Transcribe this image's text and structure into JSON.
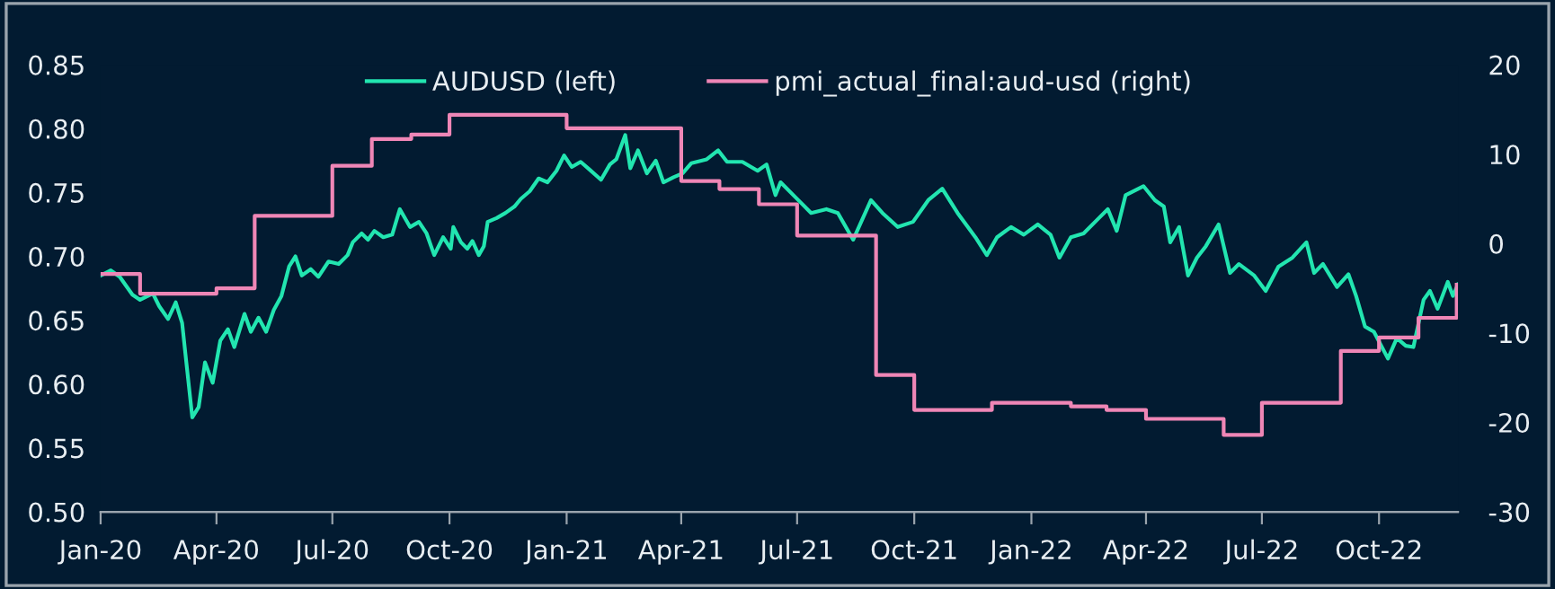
{
  "chart_data": {
    "type": "line",
    "legend": "top",
    "grid": false,
    "marker": "none",
    "line_style": "solid",
    "xlim": [
      "2020-01-01",
      "2022-12-02"
    ],
    "xticks": [
      {
        "value": "2020-01-01",
        "label": "Jan-20"
      },
      {
        "value": "2020-04-01",
        "label": "Apr-20"
      },
      {
        "value": "2020-07-01",
        "label": "Jul-20"
      },
      {
        "value": "2020-10-01",
        "label": "Oct-20"
      },
      {
        "value": "2021-01-01",
        "label": "Jan-21"
      },
      {
        "value": "2021-04-01",
        "label": "Apr-21"
      },
      {
        "value": "2021-07-01",
        "label": "Jul-21"
      },
      {
        "value": "2021-10-01",
        "label": "Oct-21"
      },
      {
        "value": "2022-01-01",
        "label": "Jan-22"
      },
      {
        "value": "2022-04-01",
        "label": "Apr-22"
      },
      {
        "value": "2022-07-01",
        "label": "Jul-22"
      },
      {
        "value": "2022-10-01",
        "label": "Oct-22"
      }
    ],
    "ylim": [
      0.5,
      0.85
    ],
    "yticks": [
      {
        "value": 0.5,
        "label": "0.50"
      },
      {
        "value": 0.55,
        "label": "0.55"
      },
      {
        "value": 0.6,
        "label": "0.60"
      },
      {
        "value": 0.65,
        "label": "0.65"
      },
      {
        "value": 0.7,
        "label": "0.70"
      },
      {
        "value": 0.75,
        "label": "0.75"
      },
      {
        "value": 0.8,
        "label": "0.80"
      },
      {
        "value": 0.85,
        "label": "0.85"
      }
    ],
    "y2lim": [
      -30,
      20
    ],
    "y2ticks": [
      -30,
      -20,
      -10,
      0,
      10,
      20
    ],
    "series": [
      {
        "name": "AUDUSD (left)",
        "color": "#22e5b0",
        "x": [
          "2020-01-01",
          "2020-01-09",
          "2020-01-16",
          "2020-01-26",
          "2020-02-01",
          "2020-02-11",
          "2020-02-16",
          "2020-02-23",
          "2020-02-29",
          "2020-03-05",
          "2020-03-08",
          "2020-03-13",
          "2020-03-18",
          "2020-03-23",
          "2020-03-29",
          "2020-04-04",
          "2020-04-10",
          "2020-04-15",
          "2020-04-23",
          "2020-04-28",
          "2020-05-04",
          "2020-05-10",
          "2020-05-16",
          "2020-05-22",
          "2020-05-28",
          "2020-06-02",
          "2020-06-07",
          "2020-06-14",
          "2020-06-20",
          "2020-06-28",
          "2020-07-06",
          "2020-07-13",
          "2020-07-17",
          "2020-07-24",
          "2020-07-29",
          "2020-08-03",
          "2020-08-10",
          "2020-08-17",
          "2020-08-23",
          "2020-08-31",
          "2020-09-07",
          "2020-09-13",
          "2020-09-19",
          "2020-09-26",
          "2020-10-02",
          "2020-10-04",
          "2020-10-10",
          "2020-10-15",
          "2020-10-19",
          "2020-10-24",
          "2020-10-28",
          "2020-10-31",
          "2020-11-07",
          "2020-11-14",
          "2020-11-21",
          "2020-11-26",
          "2020-12-03",
          "2020-12-10",
          "2020-12-17",
          "2020-12-24",
          "2020-12-30",
          "2021-01-05",
          "2021-01-12",
          "2021-01-19",
          "2021-01-28",
          "2021-02-04",
          "2021-02-09",
          "2021-02-16",
          "2021-02-20",
          "2021-02-26",
          "2021-03-05",
          "2021-03-12",
          "2021-03-18",
          "2021-03-26",
          "2021-04-02",
          "2021-04-09",
          "2021-04-21",
          "2021-04-30",
          "2021-05-07",
          "2021-05-19",
          "2021-05-31",
          "2021-06-07",
          "2021-06-14",
          "2021-06-18",
          "2021-06-30",
          "2021-07-12",
          "2021-07-24",
          "2021-08-02",
          "2021-08-14",
          "2021-08-28",
          "2021-09-06",
          "2021-09-18",
          "2021-09-30",
          "2021-10-12",
          "2021-10-23",
          "2021-11-04",
          "2021-11-18",
          "2021-11-27",
          "2021-12-05",
          "2021-12-16",
          "2021-12-26",
          "2022-01-06",
          "2022-01-16",
          "2022-01-23",
          "2022-02-01",
          "2022-02-11",
          "2022-02-23",
          "2022-03-02",
          "2022-03-09",
          "2022-03-16",
          "2022-03-30",
          "2022-04-08",
          "2022-04-15",
          "2022-04-20",
          "2022-04-27",
          "2022-05-04",
          "2022-05-11",
          "2022-05-18",
          "2022-05-28",
          "2022-06-06",
          "2022-06-13",
          "2022-06-25",
          "2022-07-04",
          "2022-07-14",
          "2022-07-25",
          "2022-08-05",
          "2022-08-11",
          "2022-08-18",
          "2022-08-29",
          "2022-09-07",
          "2022-09-13",
          "2022-09-20",
          "2022-09-27",
          "2022-10-08",
          "2022-10-15",
          "2022-10-22",
          "2022-10-28",
          "2022-11-05",
          "2022-11-10",
          "2022-11-16",
          "2022-11-24",
          "2022-11-28",
          "2022-12-02"
        ],
        "values": [
          0.685,
          0.689,
          0.684,
          0.67,
          0.666,
          0.671,
          0.661,
          0.651,
          0.664,
          0.648,
          0.62,
          0.574,
          0.582,
          0.617,
          0.601,
          0.634,
          0.643,
          0.629,
          0.655,
          0.641,
          0.652,
          0.641,
          0.658,
          0.669,
          0.692,
          0.7,
          0.685,
          0.69,
          0.684,
          0.696,
          0.694,
          0.701,
          0.711,
          0.718,
          0.713,
          0.72,
          0.715,
          0.717,
          0.737,
          0.723,
          0.727,
          0.718,
          0.701,
          0.715,
          0.706,
          0.723,
          0.711,
          0.706,
          0.712,
          0.701,
          0.708,
          0.727,
          0.73,
          0.734,
          0.739,
          0.745,
          0.751,
          0.761,
          0.758,
          0.767,
          0.779,
          0.77,
          0.774,
          0.768,
          0.76,
          0.772,
          0.776,
          0.795,
          0.769,
          0.783,
          0.765,
          0.775,
          0.758,
          0.762,
          0.765,
          0.773,
          0.776,
          0.783,
          0.774,
          0.774,
          0.767,
          0.772,
          0.748,
          0.758,
          0.746,
          0.734,
          0.737,
          0.734,
          0.713,
          0.744,
          0.734,
          0.723,
          0.727,
          0.744,
          0.753,
          0.734,
          0.715,
          0.701,
          0.715,
          0.723,
          0.717,
          0.725,
          0.717,
          0.699,
          0.715,
          0.718,
          0.73,
          0.737,
          0.72,
          0.748,
          0.755,
          0.744,
          0.739,
          0.711,
          0.723,
          0.685,
          0.699,
          0.708,
          0.725,
          0.687,
          0.694,
          0.685,
          0.673,
          0.692,
          0.699,
          0.711,
          0.687,
          0.694,
          0.676,
          0.686,
          0.669,
          0.645,
          0.641,
          0.62,
          0.636,
          0.63,
          0.629,
          0.666,
          0.673,
          0.659,
          0.68,
          0.669,
          0.678
        ]
      },
      {
        "name": "pmi_actual_final:aud-usd (right)",
        "type": "step",
        "axis": "y2",
        "color": "#ef86b6",
        "x": [
          "2020-01-01",
          "2020-02-01",
          "2020-04-01",
          "2020-05-01",
          "2020-07-01",
          "2020-08-01",
          "2020-09-01",
          "2020-10-01",
          "2021-01-01",
          "2021-04-01",
          "2021-05-01",
          "2021-06-01",
          "2021-07-01",
          "2021-09-01",
          "2021-10-01",
          "2021-12-01",
          "2022-02-01",
          "2022-03-01",
          "2022-04-01",
          "2022-06-01",
          "2022-07-01",
          "2022-09-01",
          "2022-10-01",
          "2022-11-01",
          "2022-12-01"
        ],
        "values": [
          -3.4,
          -5.6,
          -5.0,
          3.1,
          8.7,
          11.7,
          12.2,
          14.4,
          12.9,
          7.0,
          6.1,
          4.4,
          0.9,
          -14.7,
          -18.6,
          -17.8,
          -18.2,
          -18.6,
          -19.6,
          -21.4,
          -17.8,
          -12.0,
          -10.5,
          -8.3,
          -4.6
        ]
      }
    ]
  }
}
